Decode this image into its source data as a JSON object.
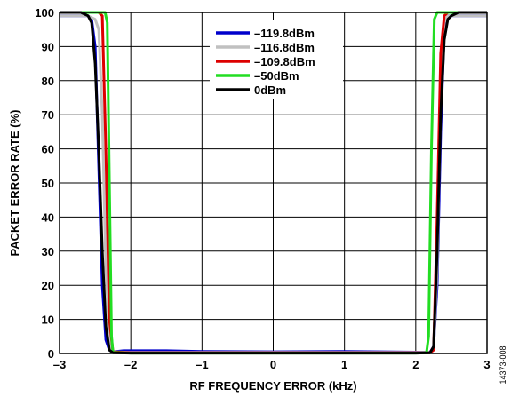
{
  "chart_data": {
    "type": "line",
    "title": "",
    "xlabel": "RF FREQUENCY ERROR (kHz)",
    "ylabel": "PACKET ERROR RATE (%)",
    "xlim": [
      -3,
      3
    ],
    "ylim": [
      0,
      100
    ],
    "x_ticks": [
      -3,
      -2,
      -1,
      0,
      1,
      2,
      3
    ],
    "x_tick_labels": [
      "–3",
      "–2",
      "–1",
      "0",
      "1",
      "2",
      "3"
    ],
    "y_ticks": [
      0,
      10,
      20,
      30,
      40,
      50,
      60,
      70,
      80,
      90,
      100
    ],
    "y_tick_labels": [
      "0",
      "10",
      "20",
      "30",
      "40",
      "50",
      "60",
      "70",
      "80",
      "90",
      "100"
    ],
    "grid": true,
    "legend_position": "top-center",
    "figure_id": "14373-008",
    "series": [
      {
        "name": "–119.8dBm",
        "color": "#0000cc",
        "x": [
          -3.0,
          -2.7,
          -2.6,
          -2.55,
          -2.5,
          -2.45,
          -2.4,
          -2.35,
          -2.3,
          -2.25,
          -2.1,
          -1.5,
          -1.0,
          0,
          1.0,
          1.5,
          2.0,
          2.2,
          2.25,
          2.3,
          2.35,
          2.4,
          2.45,
          2.5,
          2.6,
          3.0
        ],
        "y": [
          99,
          99,
          99,
          98,
          90,
          55,
          20,
          4,
          1,
          0.5,
          0.8,
          0.8,
          0.6,
          0.5,
          0.6,
          0.5,
          0.4,
          0.3,
          2,
          20,
          65,
          95,
          99,
          99,
          99,
          99
        ]
      },
      {
        "name": "–116.8dBm",
        "color": "#c0c0c0",
        "x": [
          -3.0,
          -2.6,
          -2.5,
          -2.45,
          -2.4,
          -2.35,
          -2.3,
          -2.25,
          -2.0,
          0,
          2.0,
          2.2,
          2.25,
          2.3,
          2.35,
          2.4,
          2.45,
          2.5,
          3.0
        ],
        "y": [
          99,
          99,
          98,
          95,
          70,
          25,
          4,
          0.5,
          0.3,
          0.3,
          0.3,
          0.3,
          1,
          25,
          75,
          97,
          99,
          99,
          99
        ]
      },
      {
        "name": "–109.8dBm",
        "color": "#dd0000",
        "x": [
          -3.0,
          -2.5,
          -2.45,
          -2.4,
          -2.35,
          -2.3,
          -2.25,
          -2.0,
          0,
          2.0,
          2.2,
          2.25,
          2.3,
          2.35,
          2.4,
          2.45,
          3.0
        ],
        "y": [
          100,
          100,
          100,
          99,
          60,
          10,
          0.5,
          0.2,
          0.2,
          0.2,
          0.2,
          1,
          40,
          88,
          99,
          100,
          100
        ]
      },
      {
        "name": "–50dBm",
        "color": "#22dd22",
        "x": [
          -3.0,
          -2.4,
          -2.36,
          -2.33,
          -2.3,
          -2.27,
          -2.25,
          -2.0,
          0,
          2.0,
          2.15,
          2.18,
          2.22,
          2.26,
          2.3,
          3.0
        ],
        "y": [
          100,
          100,
          100,
          97,
          50,
          5,
          0.3,
          0.1,
          0.1,
          0.1,
          0.2,
          5,
          60,
          98,
          100,
          100
        ]
      },
      {
        "name": "0dBm",
        "color": "#000000",
        "x": [
          -3.0,
          -2.7,
          -2.6,
          -2.55,
          -2.5,
          -2.45,
          -2.4,
          -2.35,
          -2.3,
          -2.25,
          -2.0,
          0,
          2.0,
          2.2,
          2.25,
          2.3,
          2.35,
          2.4,
          2.45,
          2.5,
          2.6,
          3.0
        ],
        "y": [
          100,
          100,
          99,
          97,
          85,
          60,
          30,
          8,
          1,
          0.2,
          0.1,
          0.1,
          0.1,
          0.2,
          2,
          30,
          70,
          92,
          98,
          99,
          100,
          100
        ]
      }
    ]
  }
}
